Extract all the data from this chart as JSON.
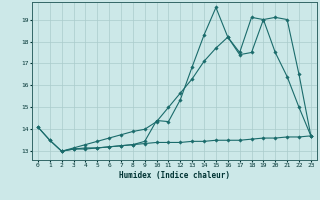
{
  "xlabel": "Humidex (Indice chaleur)",
  "bg_color": "#cce8e8",
  "grid_color": "#aacccc",
  "line_color": "#1a6b6b",
  "xlim": [
    -0.5,
    23.5
  ],
  "ylim": [
    12.6,
    19.8
  ],
  "xticks": [
    0,
    1,
    2,
    3,
    4,
    5,
    6,
    7,
    8,
    9,
    10,
    11,
    12,
    13,
    14,
    15,
    16,
    17,
    18,
    19,
    20,
    21,
    22,
    23
  ],
  "yticks": [
    13,
    14,
    15,
    16,
    17,
    18,
    19
  ],
  "line1_x": [
    0,
    1,
    2,
    3,
    4,
    5,
    6,
    7,
    8,
    9,
    10,
    11,
    12,
    13,
    14,
    15,
    16,
    17,
    18,
    19,
    20,
    21,
    22,
    23
  ],
  "line1_y": [
    14.1,
    13.5,
    13.0,
    13.1,
    13.15,
    13.15,
    13.2,
    13.25,
    13.3,
    13.45,
    14.4,
    14.35,
    15.35,
    16.85,
    18.3,
    19.55,
    18.2,
    17.5,
    19.1,
    19.0,
    17.5,
    16.4,
    15.0,
    13.7
  ],
  "line2_x": [
    0,
    1,
    2,
    3,
    4,
    5,
    6,
    7,
    8,
    9,
    10,
    11,
    12,
    13,
    14,
    15,
    16,
    17,
    18,
    19,
    20,
    21,
    22,
    23
  ],
  "line2_y": [
    14.1,
    13.5,
    13.0,
    13.1,
    13.1,
    13.15,
    13.2,
    13.25,
    13.3,
    13.35,
    13.4,
    13.4,
    13.4,
    13.45,
    13.45,
    13.5,
    13.5,
    13.5,
    13.55,
    13.6,
    13.6,
    13.65,
    13.65,
    13.7
  ],
  "line3_x": [
    2,
    3,
    4,
    5,
    6,
    7,
    8,
    9,
    10,
    11,
    12,
    13,
    14,
    15,
    16,
    17,
    18,
    19,
    20,
    21,
    22,
    23
  ],
  "line3_y": [
    13.0,
    13.15,
    13.3,
    13.45,
    13.6,
    13.75,
    13.9,
    14.0,
    14.35,
    15.0,
    15.65,
    16.3,
    17.1,
    17.7,
    18.2,
    17.4,
    17.5,
    19.0,
    19.1,
    19.0,
    16.5,
    13.7
  ]
}
